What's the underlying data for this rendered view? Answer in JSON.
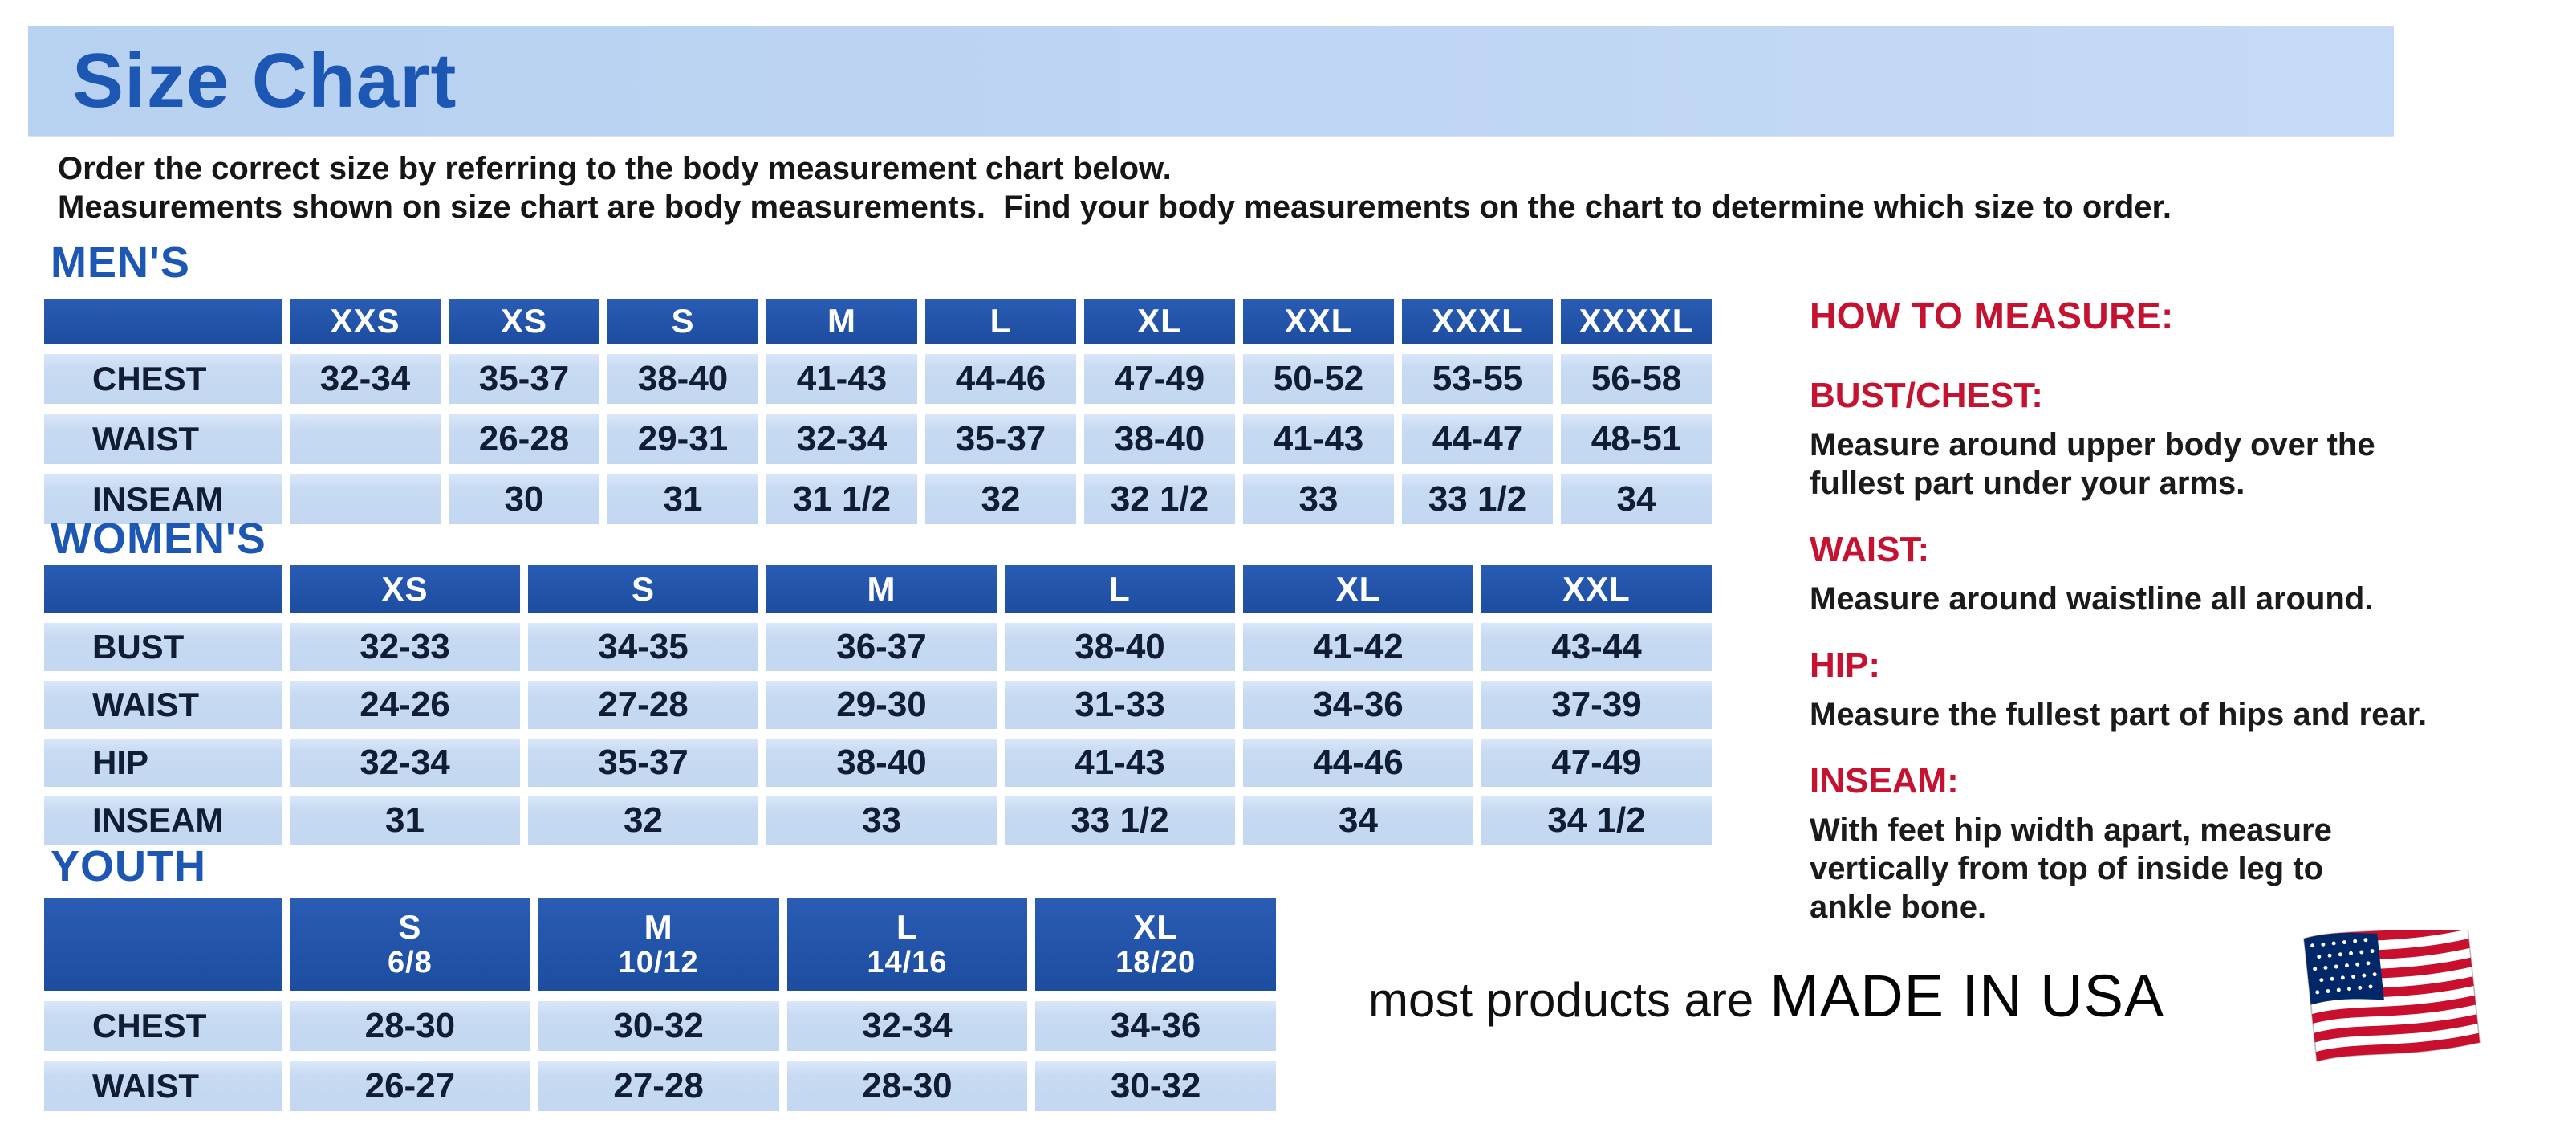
{
  "page": {
    "title": "Size Chart",
    "intro_line1": "Order the correct size by referring to the body measurement chart below.",
    "intro_line2": "Measurements shown on size chart are body measurements.  Find your body measurements on the chart to determine which size to order."
  },
  "colors": {
    "title_blue": "#1d57b4",
    "header_blue": "#1e51a8",
    "cell_blue": "#c9dcf3",
    "accent_red": "#c51230",
    "banner_bg": "#bdd5f2",
    "flag_red": "#c8102e",
    "flag_blue": "#002868"
  },
  "tables": {
    "mens": {
      "heading": "MEN'S",
      "columns": [
        "XXS",
        "XS",
        "S",
        "M",
        "L",
        "XL",
        "XXL",
        "XXXL",
        "XXXXL"
      ],
      "rows": [
        {
          "label": "CHEST",
          "values": [
            "32-34",
            "35-37",
            "38-40",
            "41-43",
            "44-46",
            "47-49",
            "50-52",
            "53-55",
            "56-58"
          ]
        },
        {
          "label": "WAIST",
          "values": [
            "",
            "26-28",
            "29-31",
            "32-34",
            "35-37",
            "38-40",
            "41-43",
            "44-47",
            "48-51"
          ]
        },
        {
          "label": "INSEAM",
          "values": [
            "",
            "30",
            "31",
            "31 1/2",
            "32",
            "32 1/2",
            "33",
            "33 1/2",
            "34"
          ]
        }
      ]
    },
    "womens": {
      "heading": "WOMEN'S",
      "columns": [
        "XS",
        "S",
        "M",
        "L",
        "XL",
        "XXL"
      ],
      "rows": [
        {
          "label": "BUST",
          "values": [
            "32-33",
            "34-35",
            "36-37",
            "38-40",
            "41-42",
            "43-44"
          ]
        },
        {
          "label": "WAIST",
          "values": [
            "24-26",
            "27-28",
            "29-30",
            "31-33",
            "34-36",
            "37-39"
          ]
        },
        {
          "label": "HIP",
          "values": [
            "32-34",
            "35-37",
            "38-40",
            "41-43",
            "44-46",
            "47-49"
          ]
        },
        {
          "label": "INSEAM",
          "values": [
            "31",
            "32",
            "33",
            "33 1/2",
            "34",
            "34 1/2"
          ]
        }
      ]
    },
    "youth": {
      "heading": "YOUTH",
      "columns": [
        {
          "size": "S",
          "grade": "6/8"
        },
        {
          "size": "M",
          "grade": "10/12"
        },
        {
          "size": "L",
          "grade": "14/16"
        },
        {
          "size": "XL",
          "grade": "18/20"
        }
      ],
      "rows": [
        {
          "label": "CHEST",
          "values": [
            "28-30",
            "30-32",
            "32-34",
            "34-36"
          ]
        },
        {
          "label": "WAIST",
          "values": [
            "26-27",
            "27-28",
            "28-30",
            "30-32"
          ]
        }
      ]
    }
  },
  "how_to_measure": {
    "heading": "HOW TO MEASURE:",
    "items": [
      {
        "label": "BUST/CHEST:",
        "text": "Measure around upper body over the\nfullest part under your arms."
      },
      {
        "label": "WAIST:",
        "text": "Measure around waistline all around."
      },
      {
        "label": "HIP:",
        "text": "Measure the fullest part of hips and rear."
      },
      {
        "label": "INSEAM:",
        "text": "With feet hip width apart, measure\nvertically from top of inside leg to\nankle bone."
      }
    ]
  },
  "footer": {
    "prefix": "most products are",
    "emphasis": "MADE IN USA",
    "flag_icon": "usa-flag-icon"
  }
}
